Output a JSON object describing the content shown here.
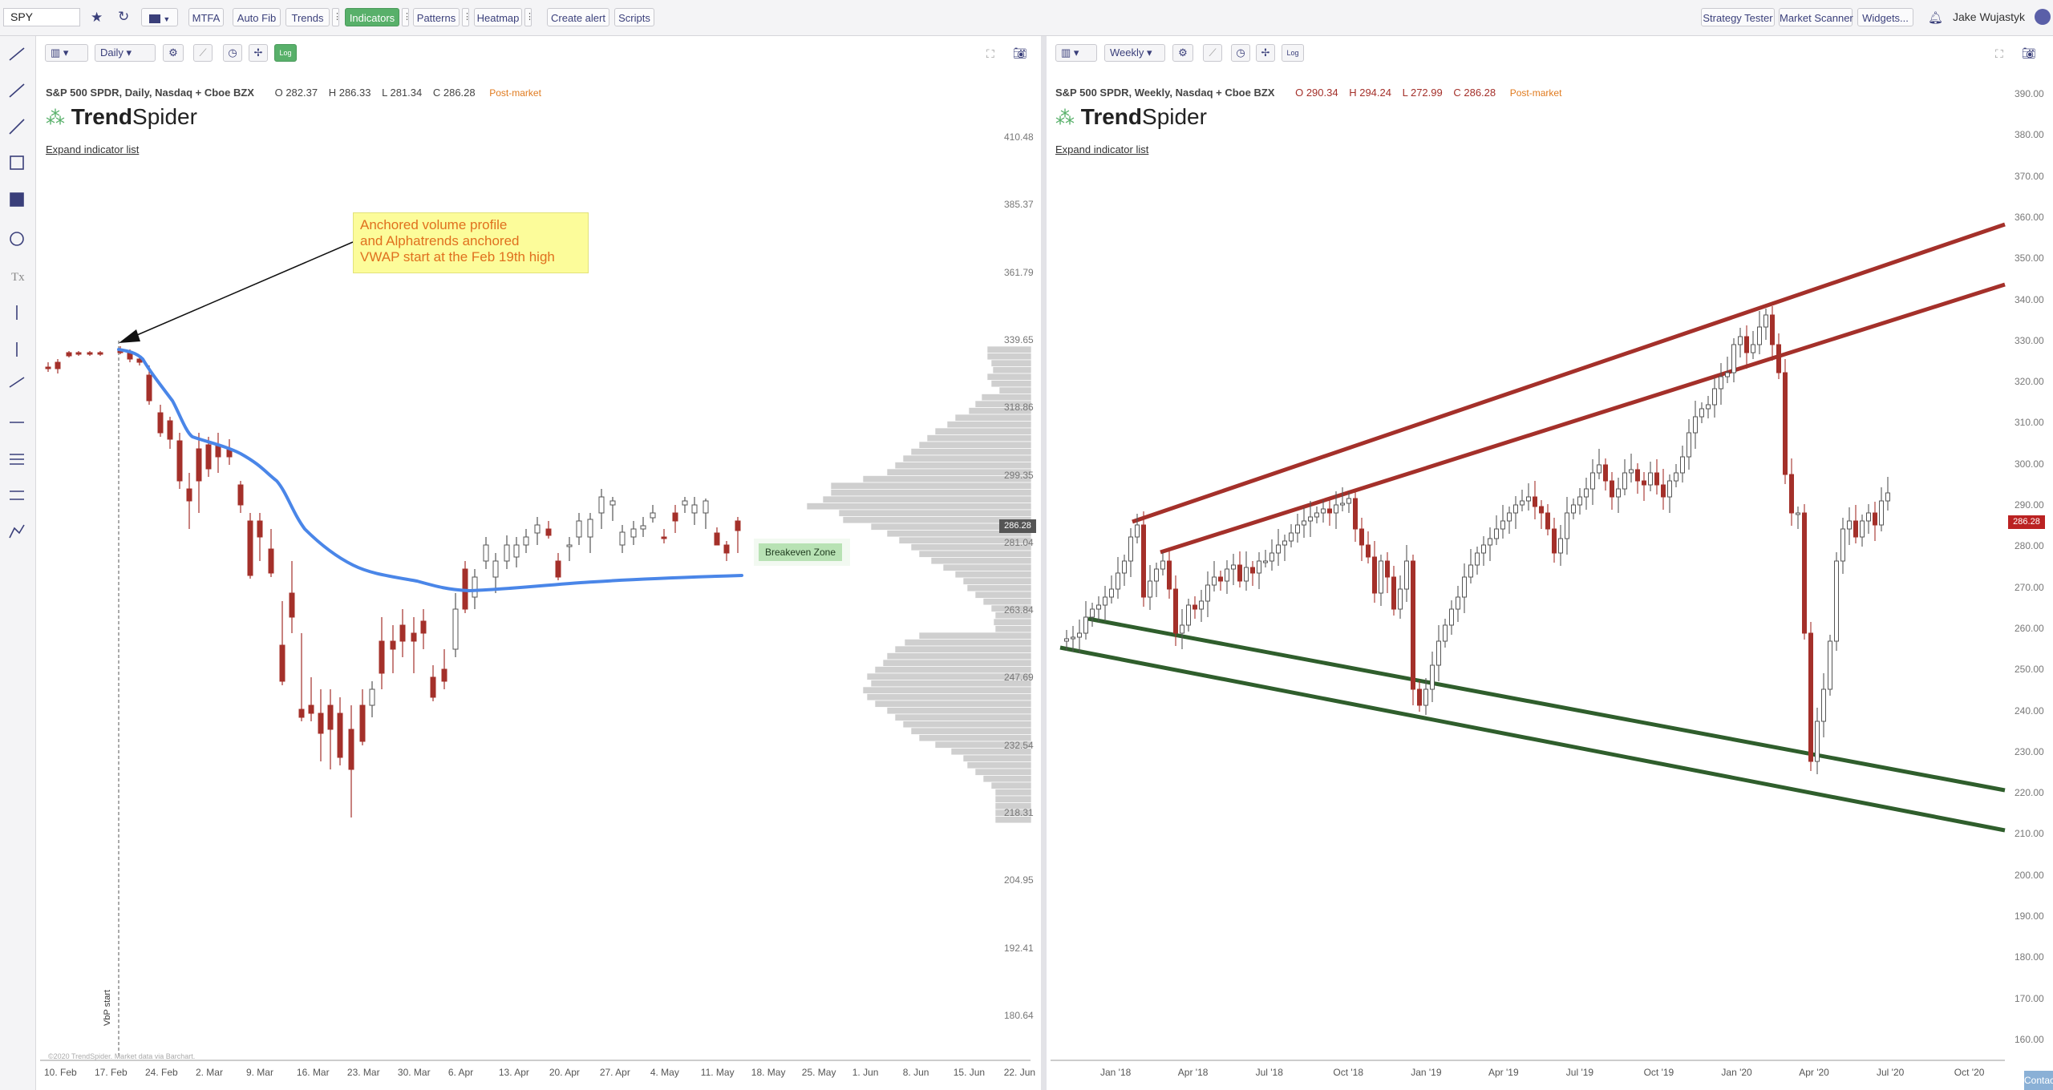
{
  "toolbar": {
    "symbol": "SPY",
    "mtfa": "MTFA",
    "auto_fib": "Auto Fib",
    "trends": "Trends",
    "indicators": "Indicators",
    "patterns": "Patterns",
    "heatmap": "Heatmap",
    "create_alert": "Create alert",
    "scripts": "Scripts",
    "strategy_tester": "Strategy Tester",
    "market_scanner": "Market Scanner",
    "widgets": "Widgets...",
    "user_name": "Jake Wujastyk"
  },
  "left_chart": {
    "timeframe": "Daily",
    "log_label": "Log",
    "symbol_desc": "S&P 500 SPDR, Daily, Nasdaq + Cboe BZX",
    "open": "O 282.37",
    "high": "H 286.33",
    "low": "L 281.34",
    "close": "C 286.28",
    "session": "Post-market",
    "brand_bold": "Trend",
    "brand_rest": "Spider",
    "expand_label": "Expand indicator list",
    "annotation_lines": [
      "Anchored volume profile",
      "and Alphatrends anchored",
      "VWAP start at the Feb 19th high"
    ],
    "breakeven_label": "Breakeven Zone",
    "vbp_label": "VbP start",
    "current_price": "286.28",
    "copyright": "©2020 TrendSpider. Market data via Barchart.",
    "y_labels": [
      "410.48",
      "385.37",
      "361.79",
      "339.65",
      "318.86",
      "299.35",
      "281.04",
      "263.84",
      "247.69",
      "232.54",
      "218.31",
      "204.95",
      "192.41",
      "180.64"
    ],
    "x_labels": [
      "10. Feb",
      "17. Feb",
      "24. Feb",
      "2. Mar",
      "9. Mar",
      "16. Mar",
      "23. Mar",
      "30. Mar",
      "6. Apr",
      "13. Apr",
      "20. Apr",
      "27. Apr",
      "4. May",
      "11. May",
      "18. May",
      "25. May",
      "1. Jun",
      "8. Jun",
      "15. Jun",
      "22. Jun"
    ]
  },
  "right_chart": {
    "timeframe": "Weekly",
    "log_label": "Log",
    "symbol_desc": "S&P 500 SPDR, Weekly, Nasdaq + Cboe BZX",
    "open": "O 290.34",
    "high": "H 294.24",
    "low": "L 272.99",
    "close": "C 286.28",
    "session": "Post-market",
    "brand_bold": "Trend",
    "brand_rest": "Spider",
    "expand_label": "Expand indicator list",
    "current_price": "286.28",
    "y_labels": [
      "390.00",
      "380.00",
      "370.00",
      "360.00",
      "350.00",
      "340.00",
      "330.00",
      "320.00",
      "310.00",
      "300.00",
      "290.00",
      "280.00",
      "270.00",
      "260.00",
      "250.00",
      "240.00",
      "230.00",
      "220.00",
      "210.00",
      "200.00",
      "190.00",
      "180.00",
      "170.00",
      "160.00"
    ],
    "x_labels": [
      "Jan '18",
      "Apr '18",
      "Jul '18",
      "Oct '18",
      "Jan '19",
      "Apr '19",
      "Jul '19",
      "Oct '19",
      "Jan '20",
      "Apr '20",
      "Jul '20",
      "Oct '20"
    ]
  },
  "contact_label": "Contact us",
  "colors": {
    "accent_green": "#58b06a",
    "bear_candle": "#a4302a",
    "vwap_line": "#4a86e8",
    "channel_red": "#a4302a",
    "channel_green": "#2f5e2c"
  }
}
